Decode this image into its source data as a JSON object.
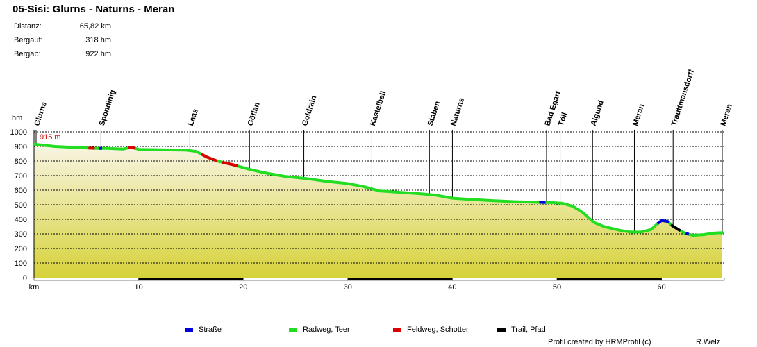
{
  "title": "05-Sisi: Glurns - Naturns - Meran",
  "stats": [
    {
      "label": "Distanz:",
      "value": "65,82 km"
    },
    {
      "label": "Bergauf:",
      "value": "318 hm"
    },
    {
      "label": "Bergab:",
      "value": "922 hm"
    }
  ],
  "chart_data": {
    "type": "area",
    "xlabel": "km",
    "ylabel": "hm",
    "xlim": [
      0,
      66
    ],
    "ylim": [
      0,
      1000
    ],
    "x_ticks": [
      10,
      20,
      30,
      40,
      50,
      60
    ],
    "y_ticks": [
      0,
      100,
      200,
      300,
      400,
      500,
      600,
      700,
      800,
      900,
      1000
    ],
    "start_label": "915 m",
    "grid": true,
    "waypoints": [
      {
        "name": "Glurns",
        "km": 0.2
      },
      {
        "name": "Spondinig",
        "km": 6.4
      },
      {
        "name": "Laas",
        "km": 14.9
      },
      {
        "name": "Göflan",
        "km": 20.6
      },
      {
        "name": "Goldrain",
        "km": 25.8
      },
      {
        "name": "Kastelbell",
        "km": 32.3
      },
      {
        "name": "Staben",
        "km": 37.8
      },
      {
        "name": "Naturns",
        "km": 40.0
      },
      {
        "name": "Bad Egart",
        "km": 49.0
      },
      {
        "name": "Töll",
        "km": 50.3
      },
      {
        "name": "Algund",
        "km": 53.4
      },
      {
        "name": "Meran",
        "km": 57.4
      },
      {
        "name": "Trauttmansdorff",
        "km": 61.1
      },
      {
        "name": "Meran",
        "km": 65.8
      }
    ],
    "profile": [
      {
        "km": 0,
        "m": 915
      },
      {
        "km": 2,
        "m": 900
      },
      {
        "km": 4,
        "m": 893
      },
      {
        "km": 6,
        "m": 887
      },
      {
        "km": 7,
        "m": 887
      },
      {
        "km": 8.5,
        "m": 882
      },
      {
        "km": 9.3,
        "m": 895
      },
      {
        "km": 10,
        "m": 880
      },
      {
        "km": 12,
        "m": 877
      },
      {
        "km": 14.5,
        "m": 875
      },
      {
        "km": 15.5,
        "m": 866
      },
      {
        "km": 16.5,
        "m": 828
      },
      {
        "km": 17.5,
        "m": 800
      },
      {
        "km": 19,
        "m": 775
      },
      {
        "km": 20.5,
        "m": 745
      },
      {
        "km": 22,
        "m": 720
      },
      {
        "km": 24,
        "m": 695
      },
      {
        "km": 26,
        "m": 680
      },
      {
        "km": 28,
        "m": 660
      },
      {
        "km": 30,
        "m": 645
      },
      {
        "km": 31.5,
        "m": 625
      },
      {
        "km": 33,
        "m": 595
      },
      {
        "km": 35,
        "m": 585
      },
      {
        "km": 37,
        "m": 575
      },
      {
        "km": 38.5,
        "m": 565
      },
      {
        "km": 40,
        "m": 545
      },
      {
        "km": 42,
        "m": 535
      },
      {
        "km": 44,
        "m": 527
      },
      {
        "km": 46,
        "m": 521
      },
      {
        "km": 48,
        "m": 517
      },
      {
        "km": 49.5,
        "m": 515
      },
      {
        "km": 50.5,
        "m": 510
      },
      {
        "km": 51.5,
        "m": 490
      },
      {
        "km": 52.5,
        "m": 445
      },
      {
        "km": 53.5,
        "m": 380
      },
      {
        "km": 54.5,
        "m": 350
      },
      {
        "km": 56,
        "m": 325
      },
      {
        "km": 57,
        "m": 313
      },
      {
        "km": 58,
        "m": 312
      },
      {
        "km": 59,
        "m": 330
      },
      {
        "km": 59.6,
        "m": 370
      },
      {
        "km": 60,
        "m": 392
      },
      {
        "km": 60.6,
        "m": 385
      },
      {
        "km": 61,
        "m": 357
      },
      {
        "km": 61.6,
        "m": 330
      },
      {
        "km": 62.2,
        "m": 305
      },
      {
        "km": 63,
        "m": 290
      },
      {
        "km": 64,
        "m": 295
      },
      {
        "km": 65,
        "m": 305
      },
      {
        "km": 65.8,
        "m": 308
      }
    ],
    "surface_segments": [
      {
        "type": "Feldweg, Schotter",
        "from_km": 5.2,
        "to_km": 5.8
      },
      {
        "type": "Straße",
        "from_km": 6.2,
        "to_km": 6.5
      },
      {
        "type": "Feldweg, Schotter",
        "from_km": 9.0,
        "to_km": 9.7
      },
      {
        "type": "Feldweg, Schotter",
        "from_km": 16.0,
        "to_km": 17.5
      },
      {
        "type": "Feldweg, Schotter",
        "from_km": 18.0,
        "to_km": 19.5
      },
      {
        "type": "Straße",
        "from_km": 48.3,
        "to_km": 48.9
      },
      {
        "type": "Straße",
        "from_km": 59.6,
        "to_km": 60.7
      },
      {
        "type": "Trail, Pfad",
        "from_km": 60.9,
        "to_km": 61.8
      },
      {
        "type": "Straße",
        "from_km": 62.3,
        "to_km": 62.6
      }
    ],
    "legend_placement": "bottom",
    "legend": [
      {
        "name": "Straße",
        "color": "#0000dd"
      },
      {
        "name": "Radweg, Teer",
        "color": "#22dd22"
      },
      {
        "name": "Feldweg, Schotter",
        "color": "#dd0000"
      },
      {
        "name": "Trail, Pfad",
        "color": "#000000"
      }
    ],
    "colors": {
      "fill_top": "#f8f5e4",
      "fill_bottom": "#d6d23a",
      "route": "#22dd22",
      "start_label": "#cc0000"
    }
  },
  "footer": {
    "credit": "Profil created by HRMProfil (c)",
    "author": "R.Welz"
  }
}
